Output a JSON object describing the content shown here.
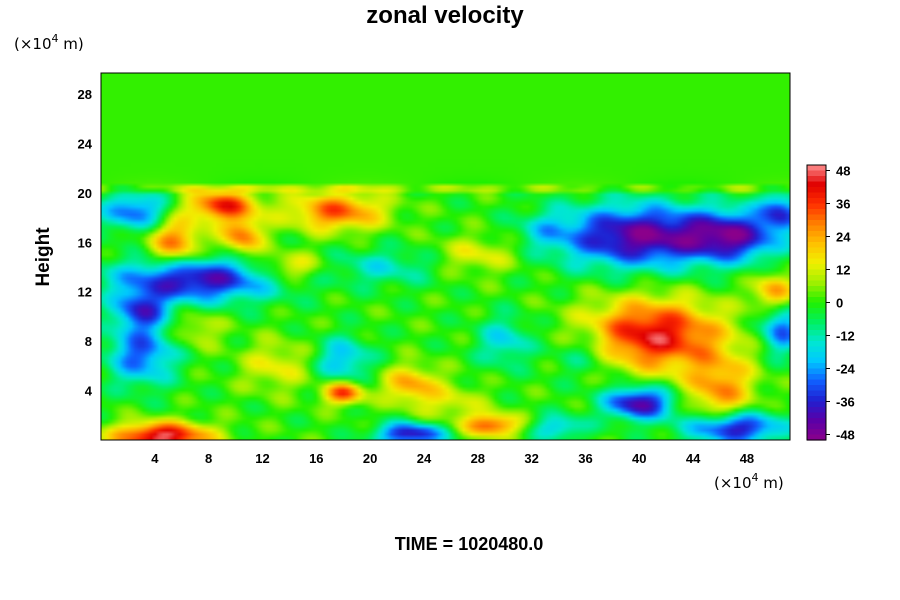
{
  "chart_data": {
    "type": "heatmap",
    "title": "zonal velocity",
    "ylabel": "Height",
    "xlabel": "",
    "y_unit": {
      "base": "(×10",
      "exp": "4",
      "tail": " m)"
    },
    "x_unit": {
      "base": "(×10",
      "exp": "4",
      "tail": " m)"
    },
    "footer": "TIME = 1020480.0",
    "xlim": [
      0,
      51.2
    ],
    "ylim": [
      0,
      29.7
    ],
    "x_ticks": [
      4,
      8,
      12,
      16,
      20,
      24,
      28,
      32,
      36,
      40,
      44,
      48
    ],
    "y_ticks": [
      4,
      8,
      12,
      16,
      20,
      24,
      28
    ],
    "colorbar": {
      "range": [
        -50,
        50
      ],
      "ticks": [
        48,
        36,
        24,
        12,
        0,
        -12,
        -24,
        -36,
        -48
      ],
      "palette": [
        "#8b008b",
        "#5a00a8",
        "#2020d0",
        "#1060ff",
        "#00c8ff",
        "#00e8d0",
        "#00f060",
        "#20f000",
        "#a0f000",
        "#f0f000",
        "#ffc000",
        "#ff8000",
        "#ff3000",
        "#e00000",
        "#ff9090"
      ]
    },
    "field": {
      "background": 0,
      "stratosphere_value": 1,
      "tropopause_height": 20.5,
      "features": [
        {
          "x": 2.5,
          "y": 18.5,
          "rx": 2.5,
          "ry": 1.5,
          "v": -30
        },
        {
          "x": 9,
          "y": 19,
          "rx": 2.5,
          "ry": 1.2,
          "v": 38
        },
        {
          "x": 17.5,
          "y": 18.5,
          "rx": 3.5,
          "ry": 1.5,
          "v": 32
        },
        {
          "x": 5.5,
          "y": 16,
          "rx": 2,
          "ry": 2,
          "v": 30
        },
        {
          "x": 10.5,
          "y": 16.5,
          "rx": 1.5,
          "ry": 1.5,
          "v": 30
        },
        {
          "x": 14,
          "y": 14,
          "rx": 2.5,
          "ry": 1.2,
          "v": 20
        },
        {
          "x": 7,
          "y": 13,
          "rx": 6,
          "ry": 1.8,
          "v": -42
        },
        {
          "x": 3,
          "y": 10.5,
          "rx": 2,
          "ry": 1.5,
          "v": -30
        },
        {
          "x": 40,
          "y": 16.5,
          "rx": 6,
          "ry": 2.5,
          "v": -46
        },
        {
          "x": 47,
          "y": 16.5,
          "rx": 3.5,
          "ry": 2,
          "v": -36
        },
        {
          "x": 28,
          "y": 15,
          "rx": 3,
          "ry": 1.5,
          "v": 14
        },
        {
          "x": 50,
          "y": 12,
          "rx": 1.5,
          "ry": 1.5,
          "v": 26
        },
        {
          "x": 21,
          "y": 14,
          "rx": 4,
          "ry": 1.5,
          "v": -14
        },
        {
          "x": 41,
          "y": 8.5,
          "rx": 5,
          "ry": 2.8,
          "v": 44
        },
        {
          "x": 46,
          "y": 4,
          "rx": 2.5,
          "ry": 3,
          "v": 26
        },
        {
          "x": 3,
          "y": 7,
          "rx": 2.5,
          "ry": 2.5,
          "v": -30
        },
        {
          "x": 13,
          "y": 6,
          "rx": 2.5,
          "ry": 2,
          "v": 14
        },
        {
          "x": 18,
          "y": 6.5,
          "rx": 2,
          "ry": 1.8,
          "v": -22
        },
        {
          "x": 18,
          "y": 3.8,
          "rx": 1.5,
          "ry": 0.9,
          "v": 36
        },
        {
          "x": 23,
          "y": 4.5,
          "rx": 2,
          "ry": 1.5,
          "v": 24
        },
        {
          "x": 30,
          "y": 8,
          "rx": 2,
          "ry": 2,
          "v": -18
        },
        {
          "x": 36,
          "y": 7,
          "rx": 2.5,
          "ry": 2,
          "v": -14
        },
        {
          "x": 40,
          "y": 3,
          "rx": 2.5,
          "ry": 1.3,
          "v": -44
        },
        {
          "x": 47,
          "y": 1,
          "rx": 3.5,
          "ry": 1.3,
          "v": -44
        },
        {
          "x": 4.5,
          "y": 0.3,
          "rx": 3.5,
          "ry": 1.1,
          "v": 48
        },
        {
          "x": 23,
          "y": 0.5,
          "rx": 2.5,
          "ry": 0.9,
          "v": -40
        },
        {
          "x": 29,
          "y": 1.2,
          "rx": 2,
          "ry": 0.9,
          "v": 34
        },
        {
          "x": 34,
          "y": 1,
          "rx": 2,
          "ry": 1,
          "v": -20
        },
        {
          "x": 26,
          "y": 3,
          "rx": 2.5,
          "ry": 1.5,
          "v": 12
        },
        {
          "x": 7,
          "y": 9,
          "rx": 2,
          "ry": 1.5,
          "v": 12
        },
        {
          "x": 50.5,
          "y": 9,
          "rx": 1.5,
          "ry": 2,
          "v": -30
        },
        {
          "x": 50.5,
          "y": 18.5,
          "rx": 1.5,
          "ry": 1.5,
          "v": -30
        },
        {
          "x": 33,
          "y": 17,
          "rx": 2,
          "ry": 1.5,
          "v": -10
        }
      ]
    }
  }
}
